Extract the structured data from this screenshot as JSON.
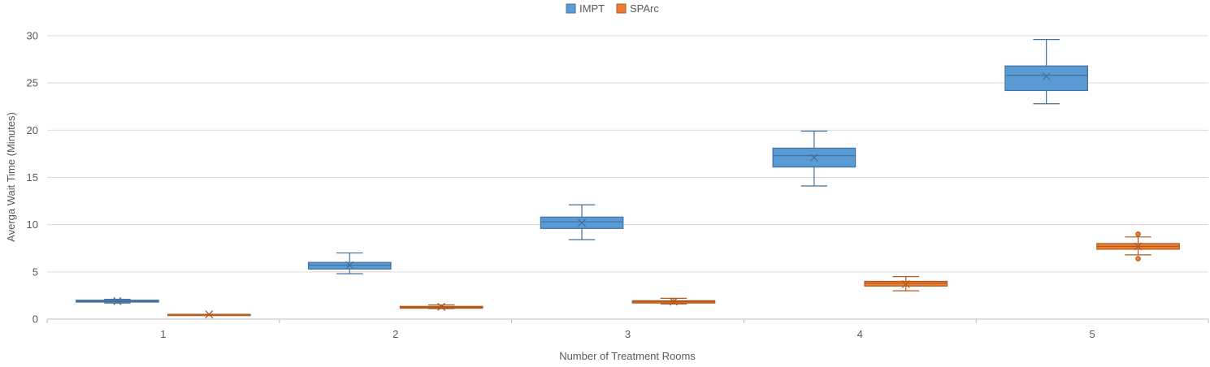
{
  "chart_data": {
    "type": "box",
    "xlabel": "Number of Treatment Rooms",
    "ylabel": "Averga Wait Time (Minutes)",
    "ylim": [
      0,
      30
    ],
    "yticks": [
      0,
      5,
      10,
      15,
      20,
      25,
      30
    ],
    "categories": [
      "1",
      "2",
      "3",
      "4",
      "5"
    ],
    "grid": "horizontal",
    "legend_position": "top-center",
    "series": [
      {
        "name": "IMPT",
        "color": "#5B9BD5",
        "stroke": "#41719C",
        "boxes": [
          {
            "min": 1.7,
            "q1": 1.8,
            "median": 1.9,
            "q3": 2.0,
            "max": 2.1,
            "mean": 1.9,
            "outliers": []
          },
          {
            "min": 4.8,
            "q1": 5.3,
            "median": 5.7,
            "q3": 6.0,
            "max": 7.0,
            "mean": 5.7,
            "outliers": []
          },
          {
            "min": 8.4,
            "q1": 9.6,
            "median": 10.3,
            "q3": 10.8,
            "max": 12.1,
            "mean": 10.2,
            "outliers": []
          },
          {
            "min": 14.1,
            "q1": 16.1,
            "median": 17.3,
            "q3": 18.1,
            "max": 19.9,
            "mean": 17.1,
            "outliers": []
          },
          {
            "min": 22.8,
            "q1": 24.2,
            "median": 25.8,
            "q3": 26.8,
            "max": 29.6,
            "mean": 25.7,
            "outliers": []
          }
        ]
      },
      {
        "name": "SPArc",
        "color": "#ED7D31",
        "stroke": "#AE5A21",
        "boxes": [
          {
            "min": 0.5,
            "q1": 0.5,
            "median": 0.5,
            "q3": 0.5,
            "max": 0.5,
            "mean": 0.5,
            "outliers": []
          },
          {
            "min": 1.1,
            "q1": 1.15,
            "median": 1.25,
            "q3": 1.35,
            "max": 1.5,
            "mean": 1.3,
            "outliers": []
          },
          {
            "min": 1.6,
            "q1": 1.7,
            "median": 1.85,
            "q3": 1.95,
            "max": 2.2,
            "mean": 1.85,
            "outliers": []
          },
          {
            "min": 3.0,
            "q1": 3.5,
            "median": 3.8,
            "q3": 4.0,
            "max": 4.5,
            "mean": 3.7,
            "outliers": []
          },
          {
            "min": 6.8,
            "q1": 7.4,
            "median": 7.7,
            "q3": 8.0,
            "max": 8.7,
            "mean": 7.7,
            "outliers": [
              6.4,
              9.0
            ]
          }
        ]
      }
    ]
  }
}
